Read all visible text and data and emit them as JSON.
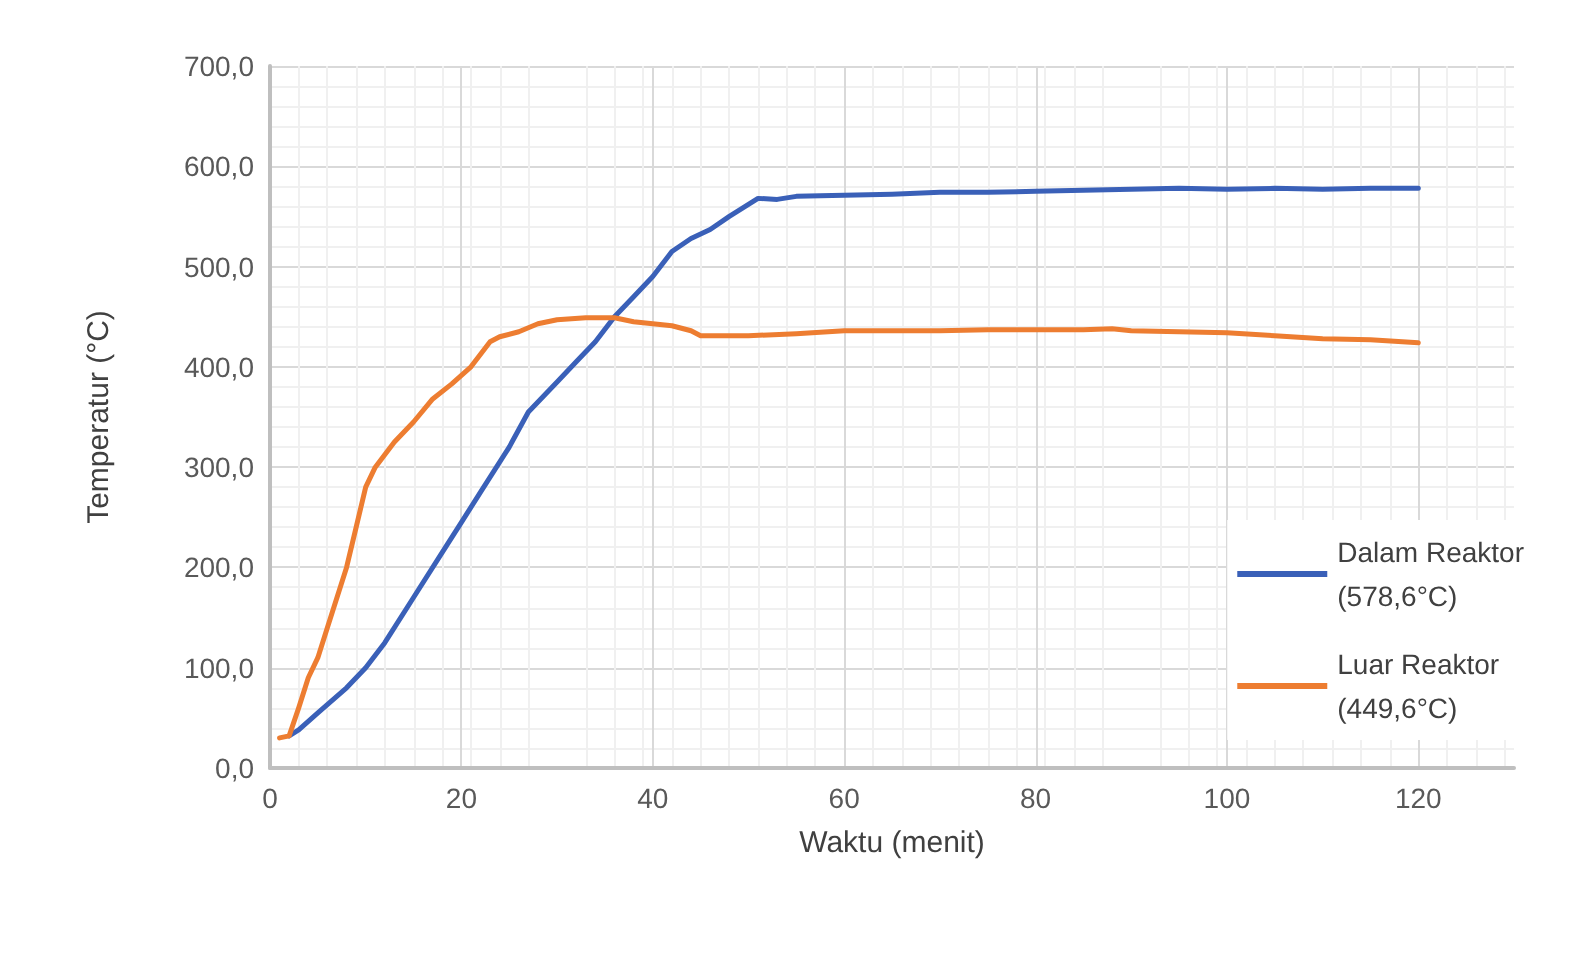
{
  "chart_data": {
    "type": "line",
    "xlabel": "Waktu (menit)",
    "ylabel": "Temperatur (°C)",
    "xlim": [
      0,
      130
    ],
    "xticks": [
      0,
      20,
      40,
      60,
      80,
      100,
      120
    ],
    "ylim": [
      0,
      700
    ],
    "yticks": [
      {
        "value": 0,
        "label": "0,0"
      },
      {
        "value": 100,
        "label": "100,0"
      },
      {
        "value": 200,
        "label": "200,0"
      },
      {
        "value": 300,
        "label": "300,0"
      },
      {
        "value": 400,
        "label": "400,0"
      },
      {
        "value": 500,
        "label": "500,0"
      },
      {
        "value": 600,
        "label": "600,0"
      },
      {
        "value": 700,
        "label": "700,0"
      }
    ],
    "grid": true,
    "legend": "right",
    "marker": "none",
    "line_style": "solid",
    "series": [
      {
        "name": "Dalam Reaktor\n(578,6°C)",
        "color": "#3a60b8",
        "x": [
          2,
          3,
          5,
          8,
          10,
          12,
          15,
          18,
          20,
          22,
          25,
          27,
          30,
          32,
          34,
          36,
          38,
          40,
          42,
          44,
          46,
          48,
          50,
          51,
          53,
          55,
          60,
          65,
          70,
          75,
          80,
          85,
          90,
          95,
          100,
          105,
          110,
          115,
          120
        ],
        "values": [
          32,
          38,
          55,
          80,
          100,
          125,
          170,
          215,
          245,
          275,
          320,
          355,
          385,
          405,
          425,
          450,
          470,
          490,
          515,
          528,
          537,
          550,
          562,
          568,
          567,
          570,
          571,
          572,
          574,
          574,
          575,
          576,
          577,
          578,
          577,
          578,
          577,
          578,
          578
        ]
      },
      {
        "name": "Luar Reaktor\n(449,6°C)",
        "color": "#ed7d31",
        "x": [
          1,
          2,
          3,
          4,
          5,
          6,
          8,
          9,
          10,
          11,
          13,
          15,
          17,
          19,
          21,
          23,
          24,
          26,
          28,
          30,
          33,
          36,
          38,
          40,
          42,
          44,
          45,
          50,
          55,
          60,
          65,
          70,
          75,
          80,
          85,
          88,
          90,
          95,
          100,
          105,
          110,
          115,
          120
        ],
        "values": [
          30,
          32,
          60,
          90,
          110,
          140,
          200,
          240,
          280,
          300,
          325,
          345,
          368,
          383,
          400,
          425,
          430,
          435,
          443,
          447,
          449,
          449,
          445,
          443,
          441,
          436,
          431,
          431,
          433,
          436,
          436,
          436,
          437,
          437,
          437,
          438,
          436,
          435,
          434,
          431,
          428,
          427,
          424
        ]
      }
    ]
  }
}
